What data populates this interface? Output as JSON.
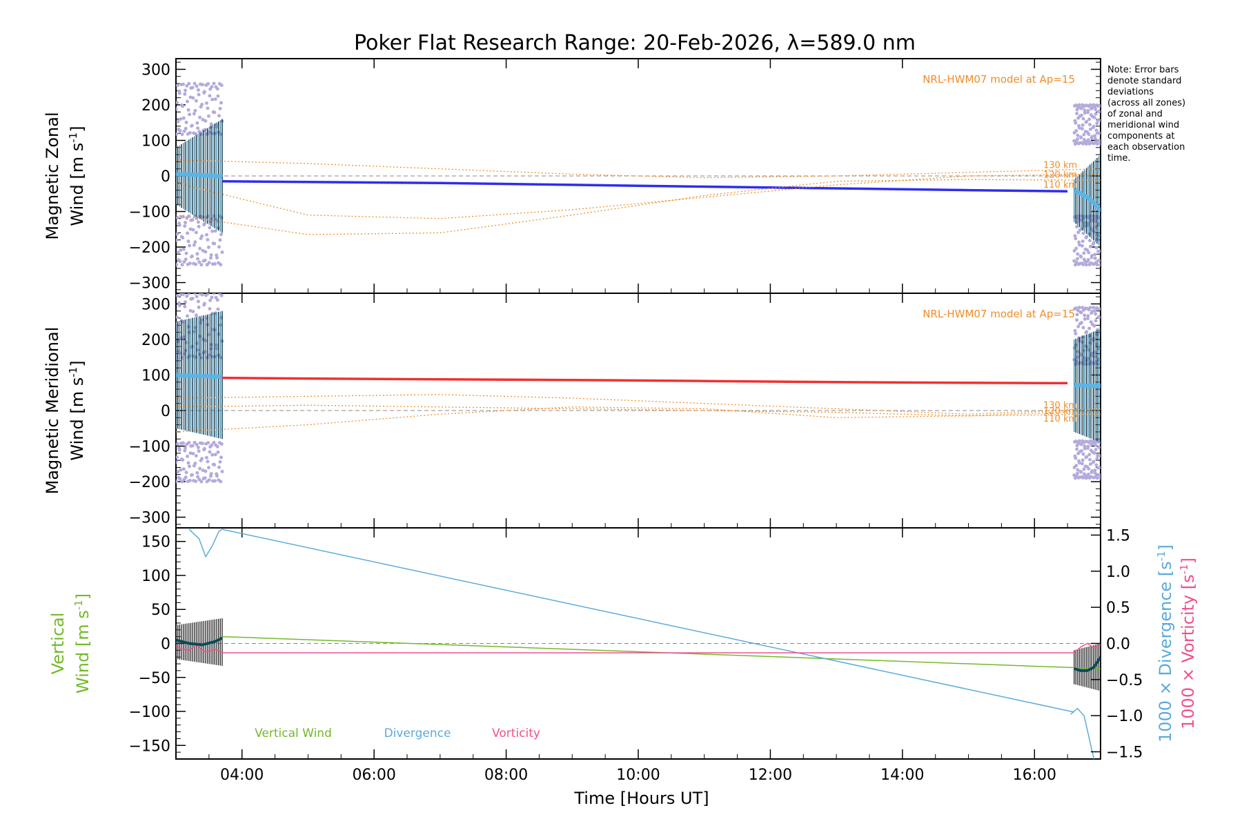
{
  "title": "Poker Flat Research Range: 20-Feb-2026, λ=589.0 nm",
  "note": [
    "Note: Error bars",
    "denote standard",
    "deviations",
    "(across all zones)",
    "of zonal and",
    "meridional wind",
    "components at",
    "each observation",
    "time."
  ],
  "xlabel": "Time [Hours UT]",
  "xticks": [
    4,
    6,
    8,
    10,
    12,
    14,
    16
  ],
  "xtick_labels": [
    "04:00",
    "06:00",
    "08:00",
    "10:00",
    "12:00",
    "14:00",
    "16:00"
  ],
  "xlim": [
    3.0,
    17.0
  ],
  "colors": {
    "zonal": "#2d2df0",
    "meridional": "#f03030",
    "obs": "#5ab4e6",
    "hwm": "#f08c28",
    "vertical": "#73b928",
    "divergence": "#5aaadc",
    "vorticity": "#f0508c",
    "scatter": "#b4aadc",
    "errbar": "#0a2a3a"
  },
  "chart_data": [
    {
      "type": "line",
      "panel": "zonal",
      "ylabel_lines": [
        "Magnetic Zonal",
        "Wind [m s^-1]"
      ],
      "ylim": [
        -330,
        330
      ],
      "yticks": [
        -300,
        -200,
        -100,
        0,
        100,
        200,
        300
      ],
      "model_label": "NRL-HWM07 model at Ap=15",
      "altitude_labels": [
        "130 km",
        "120 km",
        "110 km"
      ],
      "series": [
        {
          "name": "Magnetic zonal wind (fit)",
          "x": [
            3.7,
            5,
            7,
            9,
            11,
            13,
            15,
            16.5
          ],
          "y": [
            -15,
            -17,
            -20,
            -25,
            -30,
            -35,
            -40,
            -43
          ]
        },
        {
          "name": "Observed zonal wind (early)",
          "x": [
            3.0,
            3.2,
            3.4,
            3.6,
            3.7
          ],
          "y": [
            5,
            4,
            2,
            0,
            -2
          ]
        },
        {
          "name": "Observed zonal wind (late)",
          "x": [
            16.6,
            16.7,
            16.8,
            16.9,
            17.0
          ],
          "y": [
            -40,
            -50,
            -60,
            -75,
            -100
          ]
        },
        {
          "name": "NRL-HWM07 130 km",
          "x": [
            3.0,
            5,
            7,
            9,
            11,
            13,
            15,
            17
          ],
          "y": [
            45,
            35,
            20,
            5,
            -5,
            0,
            10,
            20
          ]
        },
        {
          "name": "NRL-HWM07 120 km",
          "x": [
            3.0,
            5,
            7,
            9,
            11,
            13,
            15,
            17
          ],
          "y": [
            -20,
            -110,
            -120,
            -95,
            -60,
            -25,
            0,
            5
          ]
        },
        {
          "name": "NRL-HWM07 110 km",
          "x": [
            3.0,
            5,
            7,
            9,
            11,
            13,
            15,
            17
          ],
          "y": [
            -110,
            -165,
            -160,
            -110,
            -55,
            -15,
            -10,
            -12
          ]
        }
      ],
      "spread": {
        "early_x": [
          3.0,
          3.7
        ],
        "early_y": [
          -250,
          260
        ],
        "late_x": [
          16.6,
          17.0
        ],
        "late_y": [
          -250,
          200
        ]
      },
      "errbars_early": {
        "center": 0,
        "halfwidth": [
          80,
          160
        ]
      },
      "errbars_late": {
        "center": -70,
        "halfwidth": [
          60,
          130
        ]
      }
    },
    {
      "type": "line",
      "panel": "meridional",
      "ylabel_lines": [
        "Magnetic Meridional",
        "Wind [m s^-1]"
      ],
      "ylim": [
        -330,
        330
      ],
      "yticks": [
        -300,
        -200,
        -100,
        0,
        100,
        200,
        300
      ],
      "model_label": "NRL-HWM07 model at Ap=15",
      "altitude_labels": [
        "130 km",
        "120 km",
        "110 km"
      ],
      "series": [
        {
          "name": "Magnetic meridional wind (fit)",
          "x": [
            3.7,
            5,
            7,
            9,
            11,
            13,
            15,
            16.5
          ],
          "y": [
            92,
            90,
            88,
            86,
            83,
            80,
            78,
            77
          ]
        },
        {
          "name": "Observed meridional wind (early)",
          "x": [
            3.0,
            3.2,
            3.4,
            3.6,
            3.7
          ],
          "y": [
            100,
            98,
            97,
            96,
            95
          ]
        },
        {
          "name": "Observed meridional wind (late)",
          "x": [
            16.6,
            16.7,
            16.8,
            16.9,
            17.0
          ],
          "y": [
            72,
            71,
            70,
            70,
            69
          ]
        },
        {
          "name": "NRL-HWM07 130 km",
          "x": [
            3.0,
            5,
            7,
            9,
            11,
            13,
            15,
            17
          ],
          "y": [
            35,
            40,
            45,
            35,
            20,
            5,
            -10,
            5
          ]
        },
        {
          "name": "NRL-HWM07 120 km",
          "x": [
            3.0,
            5,
            7,
            9,
            11,
            13,
            15,
            17
          ],
          "y": [
            10,
            15,
            10,
            5,
            0,
            -5,
            -15,
            0
          ]
        },
        {
          "name": "NRL-HWM07 110 km",
          "x": [
            3.0,
            5,
            7,
            9,
            11,
            13,
            15,
            17
          ],
          "y": [
            -60,
            -40,
            -10,
            10,
            5,
            -20,
            -15,
            -10
          ]
        }
      ],
      "spread": {
        "early_x": [
          3.0,
          3.7
        ],
        "early_y": [
          -200,
          330
        ],
        "late_x": [
          16.6,
          17.0
        ],
        "late_y": [
          -190,
          290
        ]
      },
      "errbars_early": {
        "center": 100,
        "halfwidth": [
          150,
          180
        ]
      },
      "errbars_late": {
        "center": 70,
        "halfwidth": [
          130,
          160
        ]
      }
    },
    {
      "type": "line",
      "panel": "vertical",
      "ylabel_lines": [
        "Vertical",
        "Wind [m s^-1]"
      ],
      "ylim": [
        -170,
        170
      ],
      "yticks": [
        -150,
        -100,
        -50,
        0,
        50,
        100,
        150
      ],
      "y2lim": [
        -1.6,
        1.6
      ],
      "y2ticks": [
        -1.5,
        -1.0,
        -0.5,
        0.0,
        0.5,
        1.0,
        1.5
      ],
      "y2label_div": "1000 × Divergence [s^-1]",
      "y2label_vort": "1000 × Vorticity [s^-1]",
      "legend": [
        "Vertical Wind",
        "Divergence",
        "Vorticity"
      ],
      "series": [
        {
          "name": "Vertical Wind",
          "axis": "left",
          "x": [
            3.7,
            17.0
          ],
          "y": [
            10,
            -37
          ]
        },
        {
          "name": "Divergence",
          "axis": "right",
          "x": [
            3.7,
            16.6
          ],
          "y": [
            1.58,
            -0.95
          ]
        },
        {
          "name": "Divergence (early)",
          "axis": "right",
          "x": [
            3.2,
            3.35,
            3.45,
            3.55,
            3.65,
            3.7
          ],
          "y": [
            1.58,
            1.45,
            1.2,
            1.35,
            1.55,
            1.58
          ]
        },
        {
          "name": "Divergence (late)",
          "axis": "right",
          "x": [
            16.55,
            16.65,
            16.75,
            16.85,
            16.9
          ],
          "y": [
            -0.98,
            -0.9,
            -1.0,
            -1.4,
            -1.6
          ]
        },
        {
          "name": "Vorticity",
          "axis": "right",
          "x": [
            3.7,
            16.6
          ],
          "y": [
            -0.13,
            -0.13
          ]
        },
        {
          "name": "Vorticity (early)",
          "axis": "right",
          "x": [
            3.0,
            3.2,
            3.3,
            3.45,
            3.6,
            3.7
          ],
          "y": [
            -0.05,
            -0.1,
            -0.02,
            -0.12,
            -0.08,
            -0.13
          ]
        },
        {
          "name": "Vorticity (late)",
          "axis": "right",
          "x": [
            16.6,
            16.7,
            16.8,
            16.9,
            17.0
          ],
          "y": [
            -0.13,
            -0.05,
            0.0,
            -0.06,
            -0.02
          ]
        },
        {
          "name": "Vertical wind obs (early)",
          "axis": "left",
          "x": [
            3.0,
            3.2,
            3.4,
            3.6,
            3.7
          ],
          "y": [
            5,
            0,
            -2,
            3,
            8
          ]
        },
        {
          "name": "Vertical wind obs (late)",
          "axis": "left",
          "x": [
            16.6,
            16.7,
            16.8,
            16.9,
            17.0
          ],
          "y": [
            -37,
            -40,
            -40,
            -35,
            -20
          ]
        }
      ],
      "errbars_early": {
        "center": 2,
        "halfwidth": [
          25,
          35
        ]
      },
      "errbars_late": {
        "center": -35,
        "halfwidth": [
          25,
          35
        ]
      }
    }
  ]
}
